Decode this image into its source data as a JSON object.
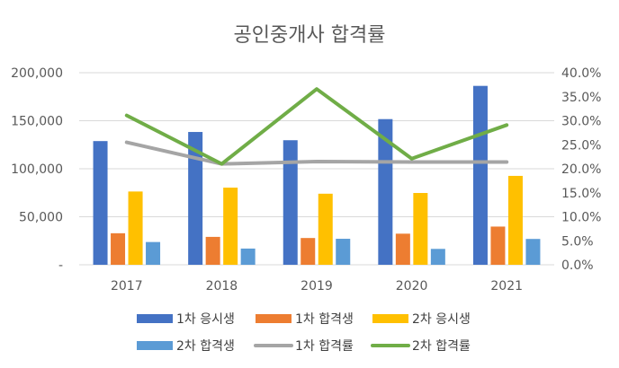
{
  "chart_data": {
    "type": "bar",
    "title": "공인중개사 합격률",
    "categories": [
      "2017",
      "2018",
      "2019",
      "2020",
      "2021"
    ],
    "bar_series": [
      {
        "name": "1차 응시생",
        "color": "#4472C4",
        "values": [
          128804,
          138287,
          129694,
          151674,
          186278
        ]
      },
      {
        "name": "1차 합격생",
        "color": "#ED7D31",
        "values": [
          32835,
          29055,
          27875,
          32383,
          39776
        ]
      },
      {
        "name": "2차 응시생",
        "color": "#FFC000",
        "values": [
          76296,
          80327,
          74001,
          74752,
          92569
        ]
      },
      {
        "name": "2차 합격생",
        "color": "#5B9BD5",
        "values": [
          23698,
          16885,
          27078,
          16555,
          26915
        ]
      }
    ],
    "line_series": [
      {
        "name": "1차 합격률",
        "color": "#A5A5A5",
        "values": [
          25.5,
          21.0,
          21.5,
          21.4,
          21.4
        ]
      },
      {
        "name": "2차 합격률",
        "color": "#70AD47",
        "values": [
          31.1,
          21.0,
          36.6,
          22.1,
          29.1
        ]
      }
    ],
    "y_left": {
      "min": 0,
      "max": 200000,
      "ticks": [
        "-",
        "50,000",
        "100,000",
        "150,000",
        "200,000"
      ]
    },
    "y_right": {
      "min": 0,
      "max": 40,
      "ticks": [
        "0.0%",
        "5.0%",
        "10.0%",
        "15.0%",
        "20.0%",
        "25.0%",
        "30.0%",
        "35.0%",
        "40.0%"
      ]
    },
    "grid": true,
    "legend_position": "bottom"
  }
}
